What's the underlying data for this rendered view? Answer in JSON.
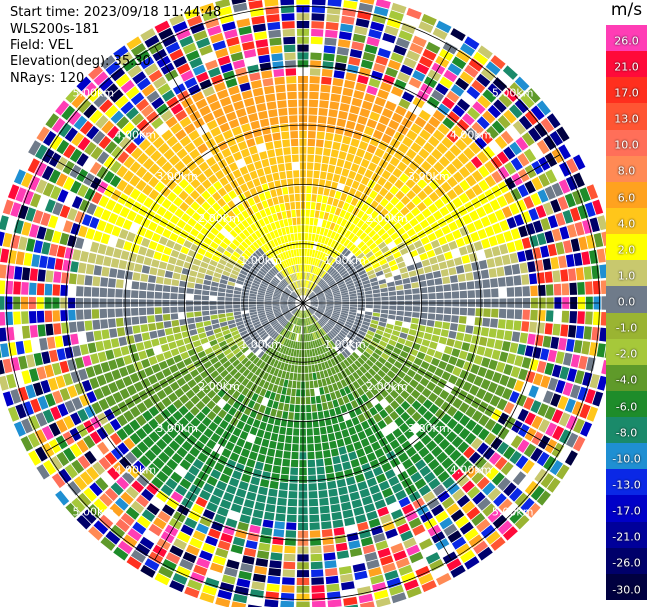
{
  "header": {
    "start_time": "Start time: 2023/09/18 11:44:48",
    "device": "WLS200s-181",
    "field": "Field: VEL",
    "elevation": "Elevation(deg): 35.30",
    "nrays": "NRays: 120"
  },
  "colorbar": {
    "unit": "m/s",
    "levels": [
      {
        "label": "26.0",
        "color": "#ff3db5"
      },
      {
        "label": "21.0",
        "color": "#ff0a3a"
      },
      {
        "label": "17.0",
        "color": "#ff2f1e"
      },
      {
        "label": "13.0",
        "color": "#ff5533"
      },
      {
        "label": "10.0",
        "color": "#ff6f59"
      },
      {
        "label": "8.0",
        "color": "#ff8a55"
      },
      {
        "label": "6.0",
        "color": "#ffa21f"
      },
      {
        "label": "4.0",
        "color": "#ffc61a"
      },
      {
        "label": "2.0",
        "color": "#ffff00"
      },
      {
        "label": "1.0",
        "color": "#c8c86e"
      },
      {
        "label": "0.0",
        "color": "#6f7b8a"
      },
      {
        "label": "-1.0",
        "color": "#9ab432"
      },
      {
        "label": "-2.0",
        "color": "#a6c83a"
      },
      {
        "label": "-4.0",
        "color": "#5f9a2a"
      },
      {
        "label": "-6.0",
        "color": "#1e8c2a"
      },
      {
        "label": "-8.0",
        "color": "#1a8a6a"
      },
      {
        "label": "-10.0",
        "color": "#1f8fd2"
      },
      {
        "label": "-13.0",
        "color": "#0a28e6"
      },
      {
        "label": "-17.0",
        "color": "#0000c8"
      },
      {
        "label": "-21.0",
        "color": "#00009a"
      },
      {
        "label": "-26.0",
        "color": "#00006a"
      },
      {
        "label": "-30.0",
        "color": "#000040"
      }
    ]
  },
  "chart_data": {
    "type": "heatmap",
    "projection": "polar PPI",
    "field": "VEL",
    "units": "m/s",
    "n_rays": 120,
    "range_rings_km": [
      1.0,
      2.0,
      3.0,
      4.0,
      5.0
    ],
    "range_ring_labels": [
      "1.00km",
      "2.00km",
      "3.00km",
      "4.00km",
      "5.00km"
    ],
    "max_range_km": 5.3,
    "spokes": 12,
    "velocity_pattern": {
      "north_sector": "positive (2 to 8 m/s, yellow/orange)",
      "south_sector": "negative (-2 to -6 m/s, green)",
      "east_west": "near zero (gray)",
      "outer_ring_km": "noise beyond ~3.8 km"
    }
  }
}
